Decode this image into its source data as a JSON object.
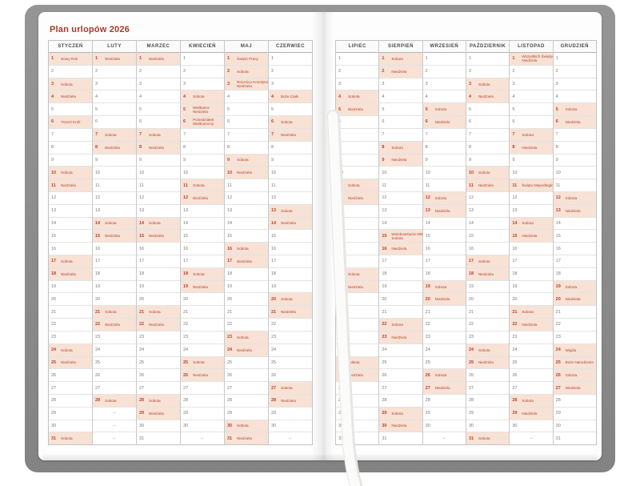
{
  "calendar": {
    "title": "Plan urlopów 2026",
    "year": "2026",
    "rows": 31,
    "empty_day_marker": "–",
    "months": [
      {
        "name": "STYCZEŃ",
        "num_days": 31,
        "highlights": [
          {
            "day": 1,
            "label": "Nowy Rok"
          },
          {
            "day": 3,
            "label": "Sobota"
          },
          {
            "day": 4,
            "label": "Niedziela"
          },
          {
            "day": 6,
            "label": "Trzech Króli"
          },
          {
            "day": 10,
            "label": "Sobota"
          },
          {
            "day": 11,
            "label": "Niedziela"
          },
          {
            "day": 17,
            "label": "Sobota"
          },
          {
            "day": 18,
            "label": "Niedziela"
          },
          {
            "day": 24,
            "label": "Sobota"
          },
          {
            "day": 25,
            "label": "Niedziela"
          },
          {
            "day": 31,
            "label": "Sobota"
          }
        ]
      },
      {
        "name": "LUTY",
        "num_days": 28,
        "highlights": [
          {
            "day": 1,
            "label": "Niedziela"
          },
          {
            "day": 7,
            "label": "Sobota"
          },
          {
            "day": 8,
            "label": "Niedziela"
          },
          {
            "day": 14,
            "label": "Sobota"
          },
          {
            "day": 15,
            "label": "Niedziela"
          },
          {
            "day": 21,
            "label": "Sobota"
          },
          {
            "day": 22,
            "label": "Niedziela"
          },
          {
            "day": 28,
            "label": "Sobota"
          }
        ]
      },
      {
        "name": "MARZEC",
        "num_days": 31,
        "highlights": [
          {
            "day": 1,
            "label": "Niedziela"
          },
          {
            "day": 7,
            "label": "Sobota"
          },
          {
            "day": 8,
            "label": "Niedziela"
          },
          {
            "day": 14,
            "label": "Sobota"
          },
          {
            "day": 15,
            "label": "Niedziela"
          },
          {
            "day": 21,
            "label": "Sobota"
          },
          {
            "day": 22,
            "label": "Niedziela"
          },
          {
            "day": 28,
            "label": "Sobota"
          },
          {
            "day": 29,
            "label": "Niedziela"
          }
        ]
      },
      {
        "name": "KWIECIEŃ",
        "num_days": 30,
        "highlights": [
          {
            "day": 4,
            "label": "Sobota"
          },
          {
            "day": 5,
            "label": [
              "Wielkanoc",
              "Niedziela"
            ]
          },
          {
            "day": 6,
            "label": [
              "Poniedziałek",
              "Wielkanocny"
            ]
          },
          {
            "day": 11,
            "label": "Sobota"
          },
          {
            "day": 12,
            "label": "Niedziela"
          },
          {
            "day": 18,
            "label": "Sobota"
          },
          {
            "day": 19,
            "label": "Niedziela"
          },
          {
            "day": 25,
            "label": "Sobota"
          },
          {
            "day": 26,
            "label": "Niedziela"
          }
        ]
      },
      {
        "name": "MAJ",
        "num_days": 31,
        "highlights": [
          {
            "day": 1,
            "label": "Święto Pracy"
          },
          {
            "day": 2,
            "label": "Sobota"
          },
          {
            "day": 3,
            "label": [
              "Rocznica Konstytucji",
              "Niedziela"
            ]
          },
          {
            "day": 9,
            "label": "Sobota"
          },
          {
            "day": 10,
            "label": "Niedziela"
          },
          {
            "day": 16,
            "label": "Sobota"
          },
          {
            "day": 17,
            "label": "Niedziela"
          },
          {
            "day": 23,
            "label": "Sobota"
          },
          {
            "day": 24,
            "label": "Niedziela"
          },
          {
            "day": 30,
            "label": "Sobota"
          },
          {
            "day": 31,
            "label": "Niedziela"
          }
        ]
      },
      {
        "name": "CZERWIEC",
        "num_days": 30,
        "highlights": [
          {
            "day": 4,
            "label": "Boże Ciało"
          },
          {
            "day": 6,
            "label": "Sobota"
          },
          {
            "day": 7,
            "label": "Niedziela"
          },
          {
            "day": 13,
            "label": "Sobota"
          },
          {
            "day": 14,
            "label": "Niedziela"
          },
          {
            "day": 20,
            "label": "Sobota"
          },
          {
            "day": 21,
            "label": "Niedziela"
          },
          {
            "day": 27,
            "label": "Sobota"
          },
          {
            "day": 28,
            "label": "Niedziela"
          }
        ]
      },
      {
        "name": "LIPIEC",
        "num_days": 31,
        "highlights": [
          {
            "day": 4,
            "label": "Sobota"
          },
          {
            "day": 5,
            "label": "Niedziela"
          },
          {
            "day": 11,
            "label": "Sobota"
          },
          {
            "day": 12,
            "label": "Niedziela"
          },
          {
            "day": 18,
            "label": "Sobota"
          },
          {
            "day": 19,
            "label": "Niedziela"
          },
          {
            "day": 25,
            "label": "Sobota"
          },
          {
            "day": 26,
            "label": "Niedziela"
          }
        ]
      },
      {
        "name": "SIERPIEŃ",
        "num_days": 31,
        "highlights": [
          {
            "day": 1,
            "label": "Sobota"
          },
          {
            "day": 2,
            "label": "Niedziela"
          },
          {
            "day": 8,
            "label": "Sobota"
          },
          {
            "day": 9,
            "label": "Niedziela"
          },
          {
            "day": 15,
            "label": [
              "Wniebowzięcie NMP",
              "Sobota"
            ]
          },
          {
            "day": 16,
            "label": "Niedziela"
          },
          {
            "day": 22,
            "label": "Sobota"
          },
          {
            "day": 23,
            "label": "Niedziela"
          },
          {
            "day": 29,
            "label": "Sobota"
          },
          {
            "day": 30,
            "label": "Niedziela"
          }
        ]
      },
      {
        "name": "WRZESIEŃ",
        "num_days": 30,
        "highlights": [
          {
            "day": 5,
            "label": "Sobota"
          },
          {
            "day": 6,
            "label": "Niedziela"
          },
          {
            "day": 12,
            "label": "Sobota"
          },
          {
            "day": 13,
            "label": "Niedziela"
          },
          {
            "day": 19,
            "label": "Sobota"
          },
          {
            "day": 20,
            "label": "Niedziela"
          },
          {
            "day": 26,
            "label": "Sobota"
          },
          {
            "day": 27,
            "label": "Niedziela"
          }
        ]
      },
      {
        "name": "PAŹDZIERNIK",
        "num_days": 31,
        "highlights": [
          {
            "day": 3,
            "label": "Sobota"
          },
          {
            "day": 4,
            "label": "Niedziela"
          },
          {
            "day": 10,
            "label": "Sobota"
          },
          {
            "day": 11,
            "label": "Niedziela"
          },
          {
            "day": 17,
            "label": "Sobota"
          },
          {
            "day": 18,
            "label": "Niedziela"
          },
          {
            "day": 24,
            "label": "Sobota"
          },
          {
            "day": 25,
            "label": "Niedziela"
          },
          {
            "day": 31,
            "label": "Sobota"
          }
        ]
      },
      {
        "name": "LISTOPAD",
        "num_days": 30,
        "highlights": [
          {
            "day": 1,
            "label": [
              "Wszystkich Świętych",
              "Niedziela"
            ]
          },
          {
            "day": 7,
            "label": "Sobota"
          },
          {
            "day": 8,
            "label": "Niedziela"
          },
          {
            "day": 11,
            "label": "Święto Niepodległości"
          },
          {
            "day": 14,
            "label": "Sobota"
          },
          {
            "day": 15,
            "label": "Niedziela"
          },
          {
            "day": 21,
            "label": "Sobota"
          },
          {
            "day": 22,
            "label": "Niedziela"
          },
          {
            "day": 28,
            "label": "Sobota"
          },
          {
            "day": 29,
            "label": "Niedziela"
          }
        ]
      },
      {
        "name": "GRUDZIEŃ",
        "num_days": 31,
        "highlights": [
          {
            "day": 5,
            "label": "Sobota"
          },
          {
            "day": 6,
            "label": "Niedziela"
          },
          {
            "day": 12,
            "label": "Sobota"
          },
          {
            "day": 13,
            "label": "Niedziela"
          },
          {
            "day": 19,
            "label": "Sobota"
          },
          {
            "day": 20,
            "label": "Niedziela"
          },
          {
            "day": 24,
            "label": "Wigilia"
          },
          {
            "day": 25,
            "label": "Boże Narodzenie"
          },
          {
            "day": 26,
            "label": "Sobota"
          },
          {
            "day": 27,
            "label": "Niedziela"
          }
        ]
      }
    ]
  },
  "colors": {
    "title_red": "#a5392b",
    "holiday_red": "#b5432e",
    "weekend_highlight": "#f8e2d5",
    "cover_gray": "#8d8d8d",
    "page_white": "#fdfdfd"
  }
}
